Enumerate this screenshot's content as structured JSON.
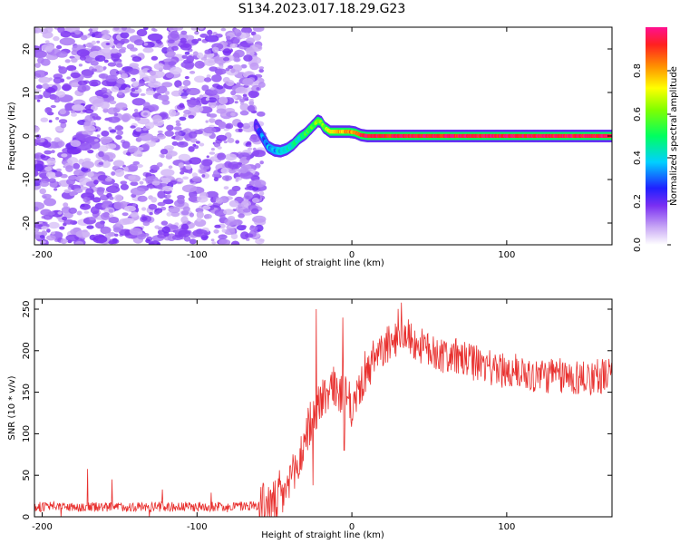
{
  "title": "S134.2023.017.18.29.G23",
  "chart_data": [
    {
      "type": "heatmap",
      "xlabel": "Height of straight line (km)",
      "ylabel": "Frequency (Hz)",
      "xlim": [
        -205,
        168
      ],
      "ylim": [
        -25,
        25
      ],
      "x_ticks": [
        -200,
        -100,
        0,
        100
      ],
      "y_ticks": [
        -20,
        -10,
        0,
        10,
        20
      ],
      "noise_region_x": [
        -205,
        -58
      ],
      "colorbar": {
        "label": "Normalized spectral amplitude",
        "range": [
          0,
          1
        ],
        "ticks": [
          0.0,
          0.2,
          0.4,
          0.6,
          0.8
        ]
      },
      "ridge": {
        "x": [
          -62,
          -58,
          -54,
          -50,
          -46,
          -42,
          -38,
          -34,
          -30,
          -26,
          -22,
          -20,
          -18,
          -14,
          -10,
          -6,
          -2,
          2,
          6,
          10,
          20,
          40,
          60,
          80,
          100,
          120,
          140,
          168
        ],
        "freq": [
          2.5,
          0,
          -2.5,
          -3.3,
          -3.5,
          -3,
          -2,
          -0.5,
          0.5,
          2,
          3.5,
          3.2,
          2,
          1,
          1,
          1,
          1,
          0.8,
          0.2,
          0,
          0,
          0,
          0,
          0,
          0,
          0,
          0,
          0
        ],
        "amplitude": [
          0.2,
          0.3,
          0.35,
          0.35,
          0.4,
          0.4,
          0.45,
          0.45,
          0.5,
          0.55,
          0.6,
          0.6,
          0.6,
          0.7,
          0.75,
          0.8,
          0.8,
          0.85,
          0.9,
          0.95,
          0.95,
          0.95,
          0.95,
          0.95,
          0.95,
          0.95,
          0.95,
          0.95
        ]
      }
    },
    {
      "type": "line",
      "xlabel": "Height of straight line (km)",
      "ylabel": "SNR (10 * v/v)",
      "xlim": [
        -205,
        168
      ],
      "ylim": [
        0,
        262
      ],
      "x_ticks": [
        -200,
        -100,
        0,
        100
      ],
      "y_ticks": [
        0,
        50,
        100,
        150,
        200,
        250
      ],
      "color": "#e8302e",
      "series": [
        {
          "x": [
            -205,
            -150,
            -100,
            -70,
            -60,
            -50,
            -45,
            -40,
            -35,
            -30,
            -25,
            -20,
            -15,
            -10,
            -5,
            0,
            5,
            10,
            15,
            20,
            25,
            30,
            35,
            40,
            50,
            60,
            70,
            80,
            90,
            100,
            110,
            120,
            130,
            140,
            150,
            160,
            168
          ],
          "values": [
            12,
            12,
            12,
            13,
            14,
            16,
            25,
            40,
            60,
            95,
            125,
            140,
            150,
            155,
            145,
            130,
            155,
            170,
            190,
            200,
            210,
            215,
            220,
            210,
            200,
            195,
            190,
            185,
            180,
            175,
            175,
            170,
            170,
            168,
            168,
            170,
            170
          ]
        }
      ],
      "spikes": [
        {
          "x": -23,
          "y": 250
        },
        {
          "x": -25,
          "y": 38
        },
        {
          "x": -6,
          "y": 240
        },
        {
          "x": -5,
          "y": 80
        },
        {
          "x": 32,
          "y": 258
        }
      ]
    }
  ]
}
